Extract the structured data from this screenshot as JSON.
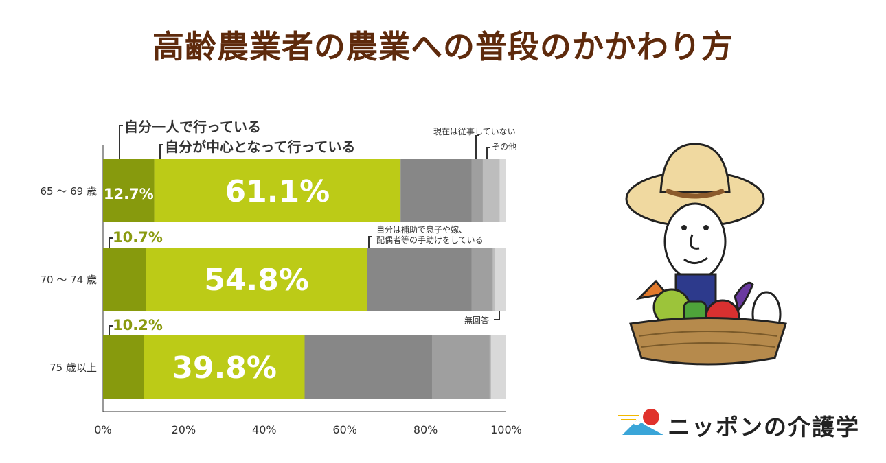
{
  "title": "高齢農業者の農業への普段のかかわり方",
  "chart_data": {
    "type": "bar",
    "orientation": "horizontal",
    "stacked": true,
    "categories": [
      "65 〜 69 歳",
      "70 〜 74 歳",
      "75 歳以上"
    ],
    "series": [
      {
        "name": "自分一人で行っている",
        "values": [
          12.7,
          10.7,
          10.2
        ],
        "color": "#879a0d"
      },
      {
        "name": "自分が中心となって行っている",
        "values": [
          61.1,
          54.8,
          39.8
        ],
        "color": "#bccb17"
      },
      {
        "name": "自分は補助で息子や嫁、配偶者等の手助けをしている",
        "values": [
          17.6,
          25.9,
          31.6
        ],
        "color": "#878787"
      },
      {
        "name": "現在は従事していない",
        "values": [
          2.8,
          5.3,
          14.3
        ],
        "color": "#9f9f9f"
      },
      {
        "name": "その他",
        "values": [
          4.2,
          0.5,
          0.4
        ],
        "color": "#bdbdbd"
      },
      {
        "name": "無回答",
        "values": [
          1.6,
          2.7,
          3.7
        ],
        "color": "#d9d9d9"
      }
    ],
    "bar_labels": [
      "12.7%",
      "61.1%",
      "10.7%",
      "54.8%",
      "10.2%",
      "39.8%"
    ],
    "xlim": [
      0,
      100
    ],
    "x_ticks": [
      "0%",
      "20%",
      "40%",
      "60%",
      "80%",
      "100%"
    ],
    "legend_placement": "callouts"
  },
  "logo": {
    "text": "ニッポンの介護学"
  }
}
